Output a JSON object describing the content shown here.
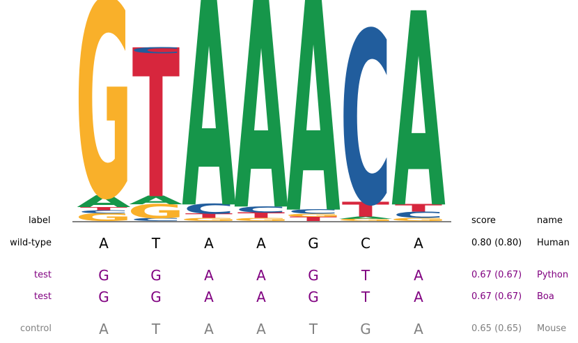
{
  "chart_data": {
    "type": "sequence-logo",
    "positions": [
      1,
      2,
      3,
      4,
      5,
      6,
      7
    ],
    "logo": [
      [
        {
          "letter": "G",
          "height": 0.075
        },
        {
          "letter": "C",
          "height": 0.03
        },
        {
          "letter": "T",
          "height": 0.03
        },
        {
          "letter": "A",
          "height": 0.11
        },
        {
          "letter": "G",
          "height": 1.82
        }
      ],
      [
        {
          "letter": "C",
          "height": 0.03
        },
        {
          "letter": "G",
          "height": 0.13
        },
        {
          "letter": "A",
          "height": 0.08
        },
        {
          "letter": "T",
          "height": 1.38
        },
        {
          "letter": "C",
          "height": 0.06
        },
        {
          "letter": "T",
          "height": 0.0
        }
      ],
      [
        {
          "letter": "G",
          "height": 0.03
        },
        {
          "letter": "T",
          "height": 0.04
        },
        {
          "letter": "C",
          "height": 0.09
        },
        {
          "letter": "A",
          "height": 1.92
        }
      ],
      [
        {
          "letter": "G",
          "height": 0.03
        },
        {
          "letter": "T",
          "height": 0.05
        },
        {
          "letter": "C",
          "height": 0.06
        },
        {
          "letter": "A",
          "height": 1.92
        }
      ],
      [
        {
          "letter": "T",
          "height": 0.04
        },
        {
          "letter": "G",
          "height": 0.03
        },
        {
          "letter": "C",
          "height": 0.04
        },
        {
          "letter": "A",
          "height": 2.0
        }
      ],
      [
        {
          "letter": "G",
          "height": 0.02
        },
        {
          "letter": "A",
          "height": 0.02
        },
        {
          "letter": "T",
          "height": 0.14
        },
        {
          "letter": "C",
          "height": 1.6
        }
      ],
      [
        {
          "letter": "G",
          "height": 0.03
        },
        {
          "letter": "C",
          "height": 0.06
        },
        {
          "letter": "T",
          "height": 0.07
        },
        {
          "letter": "A",
          "height": 1.8
        }
      ]
    ],
    "ylim": [
      0,
      2.06
    ],
    "letter_colors": {
      "A": "#16964a",
      "C": "#215d9d",
      "G": "#f9b02a",
      "T": "#d7263d"
    },
    "headers": {
      "label": "label",
      "score": "score",
      "name": "name"
    },
    "rows": [
      {
        "label": "wild-type",
        "sequence": [
          "A",
          "T",
          "A",
          "A",
          "G",
          "C",
          "A"
        ],
        "score": "0.80 (0.80)",
        "name": "Human",
        "color": "#000000"
      },
      {
        "label": "test",
        "sequence": [
          "G",
          "G",
          "A",
          "A",
          "G",
          "T",
          "A"
        ],
        "score": "0.67 (0.67)",
        "name": "Python",
        "color": "#800080"
      },
      {
        "label": "test",
        "sequence": [
          "G",
          "G",
          "A",
          "A",
          "G",
          "T",
          "A"
        ],
        "score": "0.67 (0.67)",
        "name": "Boa",
        "color": "#800080"
      },
      {
        "label": "control",
        "sequence": [
          "A",
          "T",
          "A",
          "A",
          "T",
          "G",
          "A"
        ],
        "score": "0.65 (0.65)",
        "name": "Mouse",
        "color": "#808080"
      }
    ]
  }
}
